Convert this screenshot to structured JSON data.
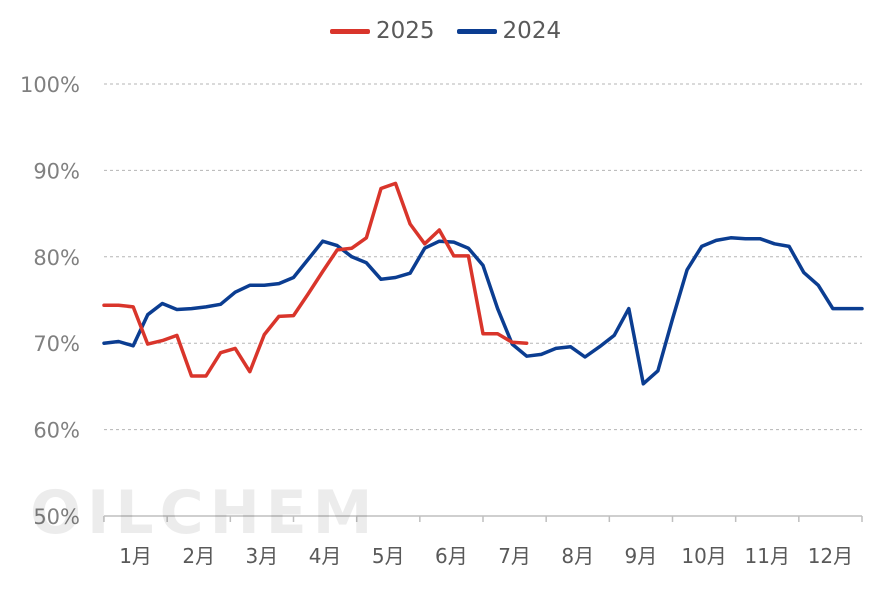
{
  "watermark": "OILCHEM",
  "chart_data": {
    "type": "line",
    "title": "",
    "xlabel": "",
    "ylabel": "",
    "ylim": [
      50,
      100
    ],
    "y_ticks": [
      "100%",
      "90%",
      "80%",
      "70%",
      "60%",
      "50%"
    ],
    "y_tick_values": [
      100,
      90,
      80,
      70,
      60,
      50
    ],
    "grid": "horizontal-dashed",
    "legend_position": "top-center",
    "x_tick_labels": [
      "1月",
      "2月",
      "3月",
      "4月",
      "5月",
      "6月",
      "7月",
      "8月",
      "9月",
      "10月",
      "11月",
      "12月"
    ],
    "x_range_weeks": [
      0,
      52
    ],
    "series": [
      {
        "name": "2025",
        "color": "#D9352B",
        "x": [
          0,
          1,
          2,
          3,
          4,
          5,
          6,
          7,
          8,
          9,
          10,
          11,
          12,
          13,
          14,
          15,
          16,
          17,
          18,
          19,
          20,
          21,
          22,
          23,
          24,
          25,
          26,
          27,
          28,
          29
        ],
        "values": [
          74.4,
          74.4,
          74.2,
          69.9,
          70.3,
          70.9,
          66.2,
          66.2,
          68.9,
          69.4,
          66.7,
          71.0,
          73.1,
          73.2,
          75.7,
          78.3,
          80.8,
          81.0,
          82.2,
          87.9,
          88.5,
          83.8,
          81.5,
          83.1,
          80.1,
          80.1,
          71.1,
          71.1,
          70.1,
          70.0
        ]
      },
      {
        "name": "2024",
        "color": "#0B3D91",
        "x": [
          0,
          1,
          2,
          3,
          4,
          5,
          6,
          7,
          8,
          9,
          10,
          11,
          12,
          13,
          14,
          15,
          16,
          17,
          18,
          19,
          20,
          21,
          22,
          23,
          24,
          25,
          26,
          27,
          28,
          29,
          30,
          31,
          32,
          33,
          34,
          35,
          36,
          37,
          38,
          39,
          40,
          41,
          42,
          43,
          44,
          45,
          46,
          47,
          48,
          49,
          50,
          51,
          52
        ],
        "values": [
          70.0,
          70.2,
          69.7,
          73.3,
          74.6,
          73.9,
          74.0,
          74.2,
          74.5,
          75.9,
          76.7,
          76.7,
          76.9,
          77.6,
          79.7,
          81.8,
          81.3,
          80.0,
          79.3,
          77.4,
          77.6,
          78.1,
          81.0,
          81.8,
          81.7,
          81.0,
          79.0,
          74.0,
          69.9,
          68.5,
          68.7,
          69.4,
          69.6,
          68.4,
          69.6,
          70.9,
          74.0,
          65.3,
          66.8,
          72.8,
          78.5,
          81.2,
          81.9,
          82.2,
          82.1,
          82.1,
          81.5,
          81.2,
          78.2,
          76.7,
          74.0,
          74.0,
          74.0
        ]
      }
    ]
  }
}
